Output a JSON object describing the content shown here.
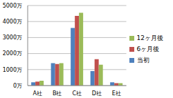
{
  "chart_data": {
    "type": "bar",
    "categories": [
      "A社",
      "B社",
      "C社",
      "D社",
      "E社"
    ],
    "series": [
      {
        "name": "当初",
        "color": "#4f81bd",
        "values": [
          200,
          1400,
          3600,
          900,
          200
        ]
      },
      {
        "name": "6ヶ月後",
        "color": "#c0504d",
        "values": [
          250,
          1350,
          4350,
          1650,
          150
        ]
      },
      {
        "name": "12ヶ月後",
        "color": "#9bbb59",
        "values": [
          300,
          1400,
          4550,
          1300,
          150
        ]
      }
    ],
    "ylim": [
      0,
      5000
    ],
    "yticks": [
      {
        "value": 0,
        "label": "0万"
      },
      {
        "value": 1000,
        "label": "1000万"
      },
      {
        "value": 2000,
        "label": "2000万"
      },
      {
        "value": 3000,
        "label": "3000万"
      },
      {
        "value": 4000,
        "label": "4000万"
      },
      {
        "value": 5000,
        "label": "5000万"
      }
    ],
    "grid": true,
    "legend": "right"
  }
}
